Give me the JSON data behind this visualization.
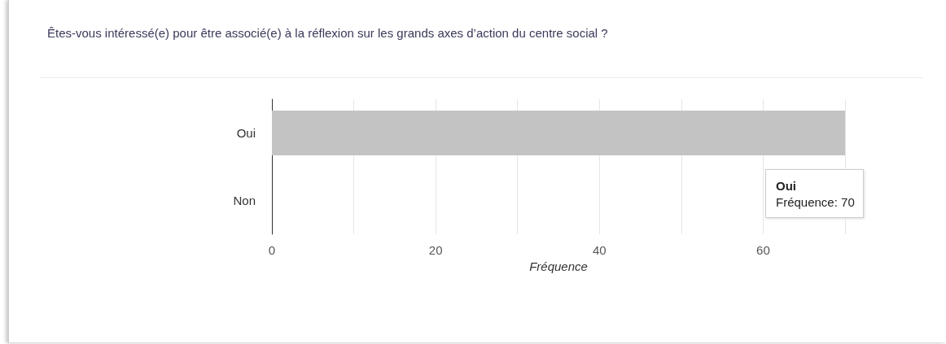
{
  "chart_data": {
    "type": "bar",
    "orientation": "horizontal",
    "title": "Êtes-vous intéressé(e) pour être associé(e) à la réflexion sur les grands axes d’action du centre social ?",
    "categories": [
      "Oui",
      "Non"
    ],
    "values": [
      70,
      null
    ],
    "color": "#c3c3c3",
    "xlabel": "Fréquence",
    "xlim": [
      0,
      70
    ],
    "xticks": [
      0,
      {
        "value": 10,
        "label": null
      },
      20,
      {
        "value": 30,
        "label": null
      },
      40,
      {
        "value": 50,
        "label": null
      },
      60,
      {
        "value": 70,
        "label": null
      }
    ],
    "grid": "x",
    "annotations": [
      "Oui\nFréquence: 70"
    ]
  }
}
